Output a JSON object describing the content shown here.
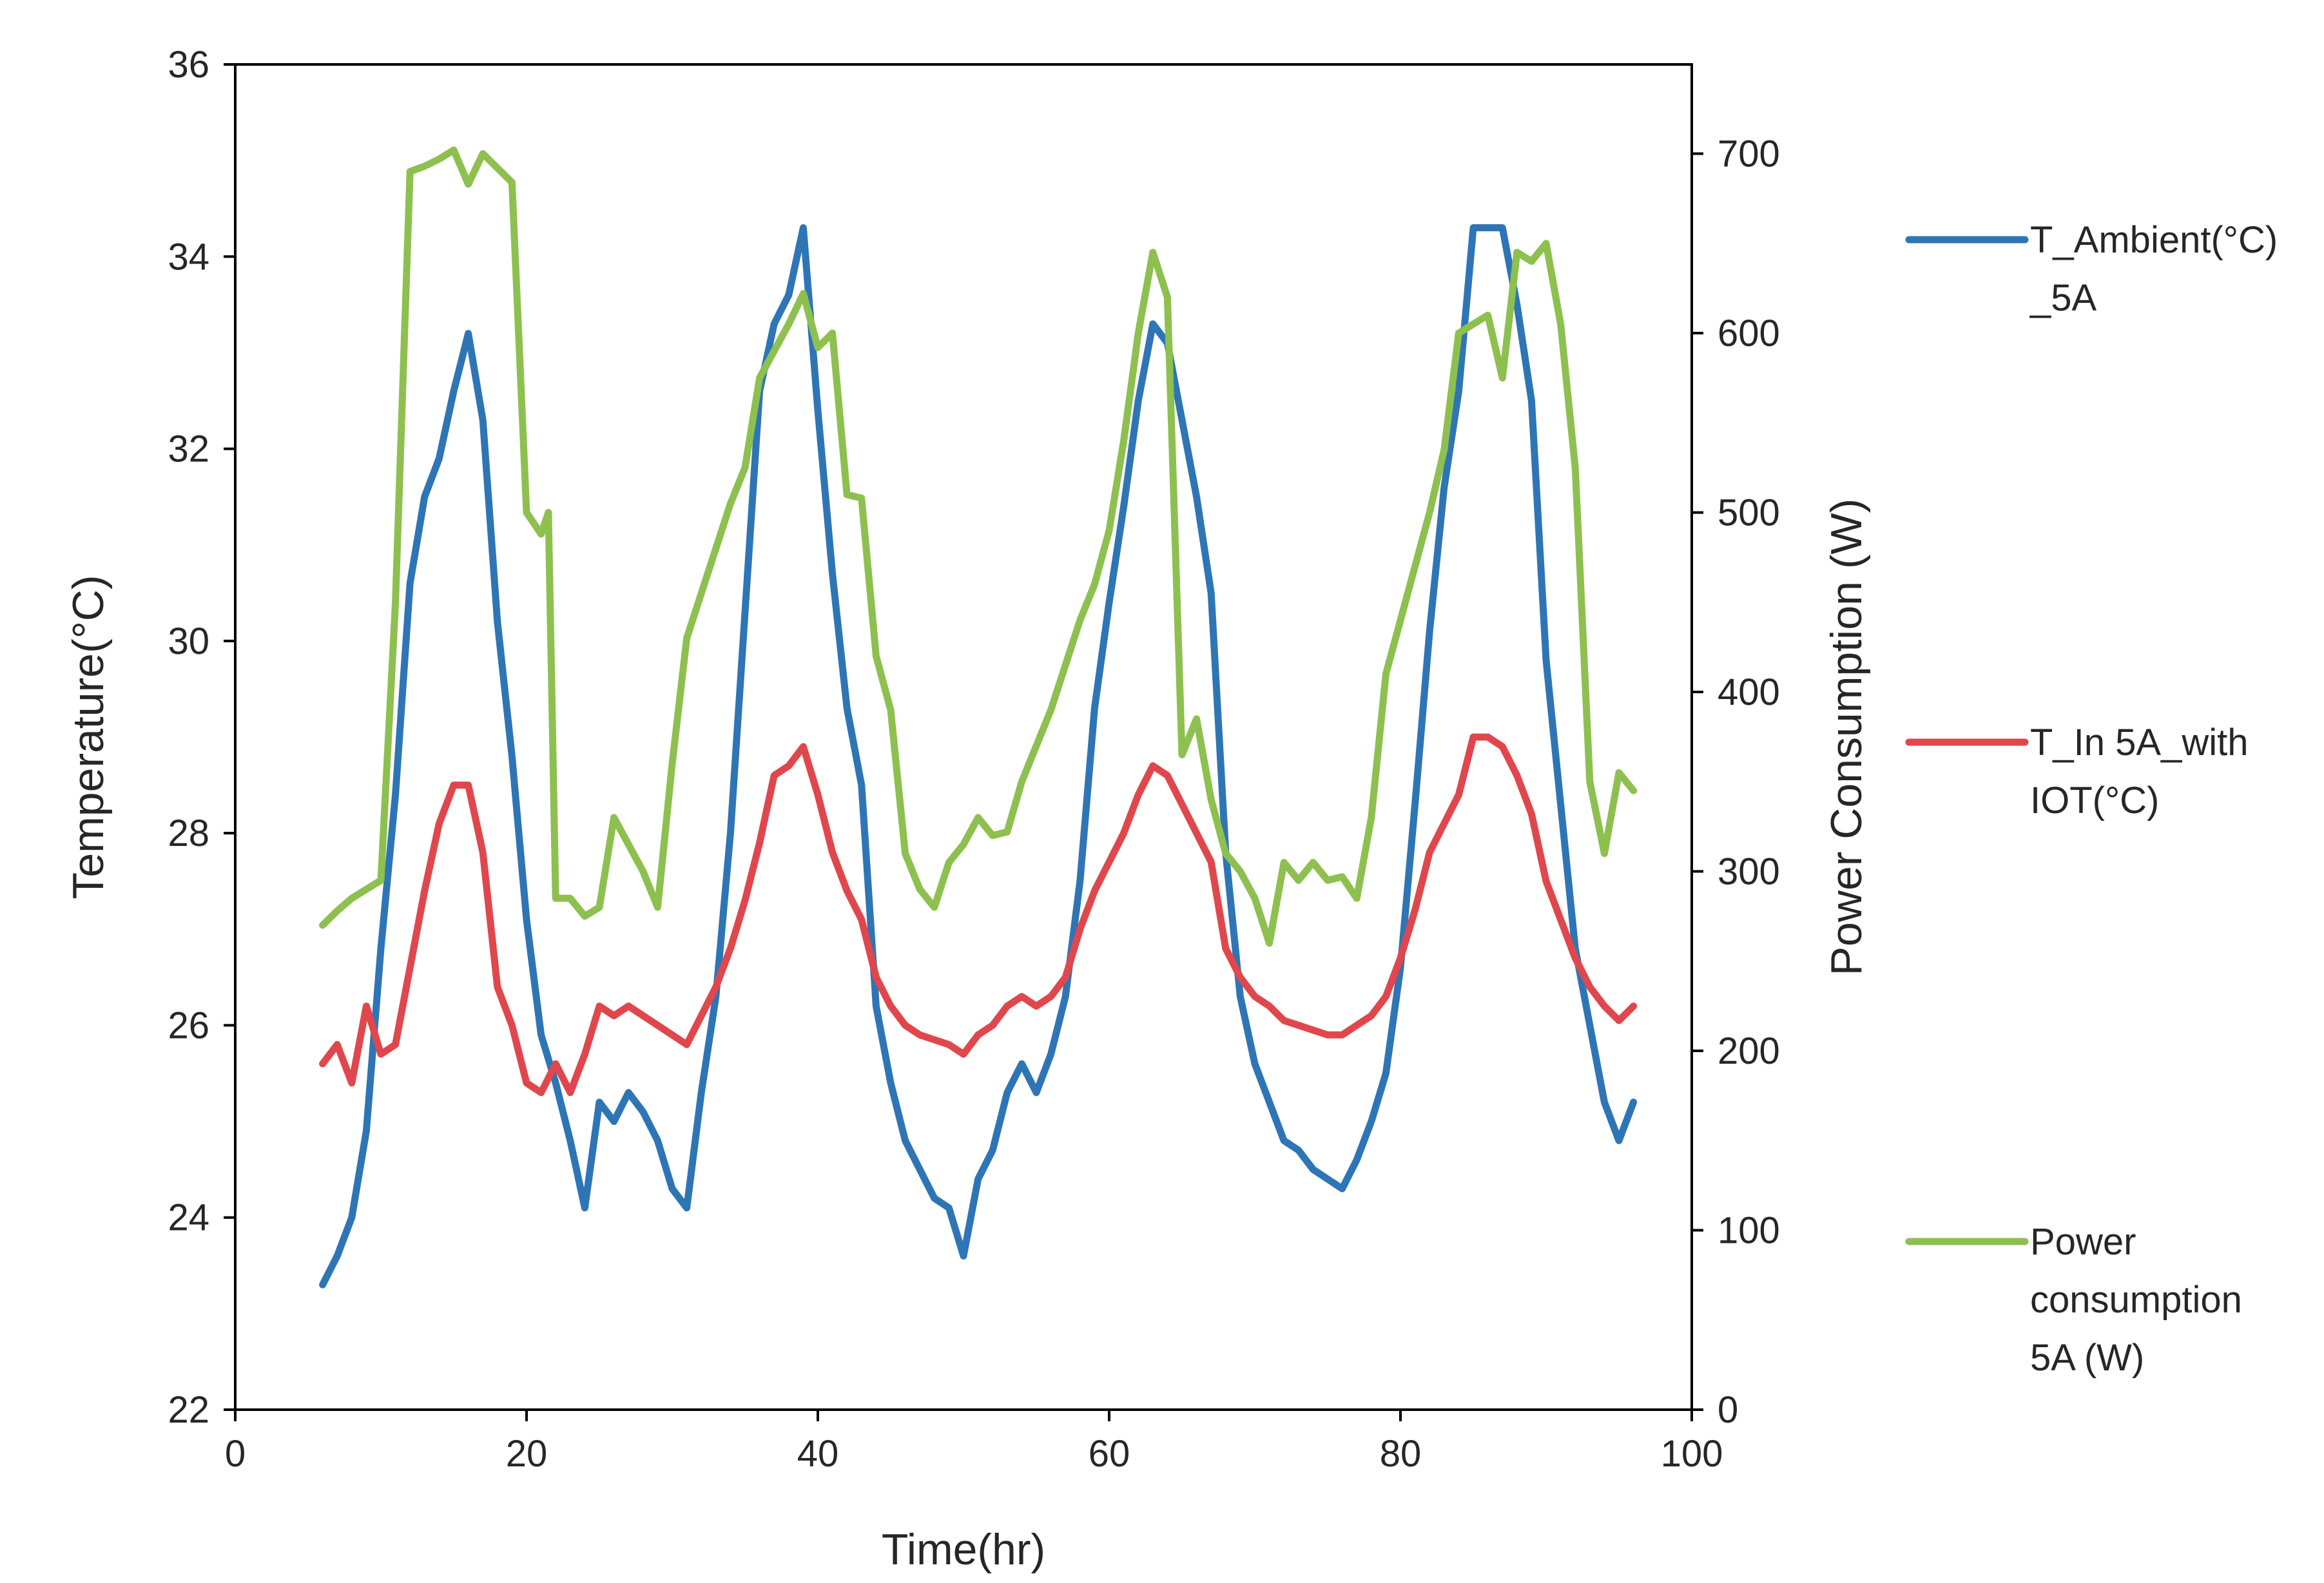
{
  "chart_data": {
    "type": "line",
    "title": "",
    "xlabel": "Time(hr)",
    "ylabel": "Temperature(°C)",
    "y2label": "Power Consumption (W)",
    "xlim": [
      0,
      100
    ],
    "ylim": [
      22,
      36
    ],
    "y2lim": [
      0,
      750
    ],
    "x_ticks": [
      0,
      20,
      40,
      60,
      80,
      100
    ],
    "y_ticks": [
      22,
      24,
      26,
      28,
      30,
      32,
      34,
      36
    ],
    "y2_ticks": [
      0,
      100,
      200,
      300,
      400,
      500,
      600,
      700
    ],
    "grid": false,
    "legend_position": "right",
    "series": [
      {
        "name": "T_Ambient(°C)_5A",
        "legend_lines": [
          "T_Ambient(°C)",
          "_5A"
        ],
        "color": "#2E75B6",
        "axis": "left",
        "points": [
          [
            6,
            23.3
          ],
          [
            7,
            23.6
          ],
          [
            8,
            24.0
          ],
          [
            9,
            24.9
          ],
          [
            10,
            26.8
          ],
          [
            11,
            28.4
          ],
          [
            12,
            30.6
          ],
          [
            13,
            31.5
          ],
          [
            14,
            31.9
          ],
          [
            15,
            32.6
          ],
          [
            16,
            33.2
          ],
          [
            17,
            32.3
          ],
          [
            18,
            30.2
          ],
          [
            19,
            28.8
          ],
          [
            20,
            27.1
          ],
          [
            21,
            25.9
          ],
          [
            22,
            25.4
          ],
          [
            23,
            24.8
          ],
          [
            24,
            24.1
          ],
          [
            25,
            25.2
          ],
          [
            26,
            25.0
          ],
          [
            27,
            25.3
          ],
          [
            28,
            25.1
          ],
          [
            29,
            24.8
          ],
          [
            30,
            24.3
          ],
          [
            31,
            24.1
          ],
          [
            32,
            25.3
          ],
          [
            33,
            26.3
          ],
          [
            34,
            28.0
          ],
          [
            35,
            30.3
          ],
          [
            36,
            32.6
          ],
          [
            37,
            33.3
          ],
          [
            38,
            33.6
          ],
          [
            39,
            34.3
          ],
          [
            40,
            32.4
          ],
          [
            41,
            30.7
          ],
          [
            42,
            29.3
          ],
          [
            43,
            28.5
          ],
          [
            44,
            26.2
          ],
          [
            45,
            25.4
          ],
          [
            46,
            24.8
          ],
          [
            47,
            24.5
          ],
          [
            48,
            24.2
          ],
          [
            49,
            24.1
          ],
          [
            50,
            23.6
          ],
          [
            51,
            24.4
          ],
          [
            52,
            24.7
          ],
          [
            53,
            25.3
          ],
          [
            54,
            25.6
          ],
          [
            55,
            25.3
          ],
          [
            56,
            25.7
          ],
          [
            57,
            26.3
          ],
          [
            58,
            27.5
          ],
          [
            59,
            29.3
          ],
          [
            60,
            30.4
          ],
          [
            61,
            31.4
          ],
          [
            62,
            32.5
          ],
          [
            63,
            33.3
          ],
          [
            64,
            33.1
          ],
          [
            65,
            32.3
          ],
          [
            66,
            31.5
          ],
          [
            67,
            30.5
          ],
          [
            68,
            27.8
          ],
          [
            69,
            26.3
          ],
          [
            70,
            25.6
          ],
          [
            71,
            25.2
          ],
          [
            72,
            24.8
          ],
          [
            73,
            24.7
          ],
          [
            74,
            24.5
          ],
          [
            75,
            24.4
          ],
          [
            76,
            24.3
          ],
          [
            77,
            24.6
          ],
          [
            78,
            25.0
          ],
          [
            79,
            25.5
          ],
          [
            80,
            26.6
          ],
          [
            81,
            28.3
          ],
          [
            82,
            30.1
          ],
          [
            83,
            31.6
          ],
          [
            84,
            32.6
          ],
          [
            85,
            34.3
          ],
          [
            86,
            34.3
          ],
          [
            87,
            34.3
          ],
          [
            88,
            33.5
          ],
          [
            89,
            32.5
          ],
          [
            90,
            29.8
          ],
          [
            91,
            28.3
          ],
          [
            92,
            26.8
          ],
          [
            93,
            26.0
          ],
          [
            94,
            25.2
          ],
          [
            95,
            24.8
          ],
          [
            96,
            25.2
          ]
        ]
      },
      {
        "name": "T_In 5A_with IOT(°C)",
        "legend_lines": [
          "T_In 5A_with",
          "IOT(°C)"
        ],
        "color": "#E0474C",
        "axis": "left",
        "points": [
          [
            6,
            25.6
          ],
          [
            7,
            25.8
          ],
          [
            8,
            25.4
          ],
          [
            9,
            26.2
          ],
          [
            10,
            25.7
          ],
          [
            11,
            25.8
          ],
          [
            12,
            26.6
          ],
          [
            13,
            27.4
          ],
          [
            14,
            28.1
          ],
          [
            15,
            28.5
          ],
          [
            16,
            28.5
          ],
          [
            17,
            27.8
          ],
          [
            18,
            26.4
          ],
          [
            19,
            26.0
          ],
          [
            20,
            25.4
          ],
          [
            21,
            25.3
          ],
          [
            22,
            25.6
          ],
          [
            23,
            25.3
          ],
          [
            24,
            25.7
          ],
          [
            25,
            26.2
          ],
          [
            26,
            26.1
          ],
          [
            27,
            26.2
          ],
          [
            28,
            26.1
          ],
          [
            29,
            26.0
          ],
          [
            30,
            25.9
          ],
          [
            31,
            25.8
          ],
          [
            32,
            26.1
          ],
          [
            33,
            26.4
          ],
          [
            34,
            26.8
          ],
          [
            35,
            27.3
          ],
          [
            36,
            27.9
          ],
          [
            37,
            28.6
          ],
          [
            38,
            28.7
          ],
          [
            39,
            28.9
          ],
          [
            40,
            28.4
          ],
          [
            41,
            27.8
          ],
          [
            42,
            27.4
          ],
          [
            43,
            27.1
          ],
          [
            44,
            26.5
          ],
          [
            45,
            26.2
          ],
          [
            46,
            26.0
          ],
          [
            47,
            25.9
          ],
          [
            48,
            25.85
          ],
          [
            49,
            25.8
          ],
          [
            50,
            25.7
          ],
          [
            51,
            25.9
          ],
          [
            52,
            26.0
          ],
          [
            53,
            26.2
          ],
          [
            54,
            26.3
          ],
          [
            55,
            26.2
          ],
          [
            56,
            26.3
          ],
          [
            57,
            26.5
          ],
          [
            58,
            27.0
          ],
          [
            59,
            27.4
          ],
          [
            60,
            27.7
          ],
          [
            61,
            28.0
          ],
          [
            62,
            28.4
          ],
          [
            63,
            28.7
          ],
          [
            64,
            28.6
          ],
          [
            65,
            28.3
          ],
          [
            66,
            28.0
          ],
          [
            67,
            27.7
          ],
          [
            68,
            26.8
          ],
          [
            69,
            26.5
          ],
          [
            70,
            26.3
          ],
          [
            71,
            26.2
          ],
          [
            72,
            26.05
          ],
          [
            73,
            26.0
          ],
          [
            74,
            25.95
          ],
          [
            75,
            25.9
          ],
          [
            76,
            25.9
          ],
          [
            77,
            26.0
          ],
          [
            78,
            26.1
          ],
          [
            79,
            26.3
          ],
          [
            80,
            26.7
          ],
          [
            81,
            27.2
          ],
          [
            82,
            27.8
          ],
          [
            83,
            28.1
          ],
          [
            84,
            28.4
          ],
          [
            85,
            29.0
          ],
          [
            86,
            29.0
          ],
          [
            87,
            28.9
          ],
          [
            88,
            28.6
          ],
          [
            89,
            28.2
          ],
          [
            90,
            27.5
          ],
          [
            91,
            27.1
          ],
          [
            92,
            26.7
          ],
          [
            93,
            26.4
          ],
          [
            94,
            26.2
          ],
          [
            95,
            26.05
          ],
          [
            96,
            26.2
          ]
        ]
      },
      {
        "name": "Power consumption 5A (W)",
        "legend_lines": [
          "Power",
          "consumption",
          "5A (W)"
        ],
        "color": "#8DC04F",
        "axis": "right",
        "points": [
          [
            6,
            270
          ],
          [
            7,
            278
          ],
          [
            8,
            285
          ],
          [
            9,
            290
          ],
          [
            10,
            295
          ],
          [
            11,
            450
          ],
          [
            12,
            690
          ],
          [
            13,
            693
          ],
          [
            14,
            697
          ],
          [
            15,
            702
          ],
          [
            16,
            683
          ],
          [
            17,
            700
          ],
          [
            18,
            692
          ],
          [
            19,
            684
          ],
          [
            20,
            500
          ],
          [
            21,
            488
          ],
          [
            21.5,
            500
          ],
          [
            22,
            285
          ],
          [
            23,
            285
          ],
          [
            24,
            275
          ],
          [
            25,
            280
          ],
          [
            26,
            330
          ],
          [
            27,
            315
          ],
          [
            28,
            300
          ],
          [
            29,
            280
          ],
          [
            30,
            360
          ],
          [
            31,
            430
          ],
          [
            32,
            455
          ],
          [
            33,
            480
          ],
          [
            34,
            505
          ],
          [
            35,
            525
          ],
          [
            36,
            575
          ],
          [
            37,
            590
          ],
          [
            38,
            605
          ],
          [
            39,
            622
          ],
          [
            40,
            592
          ],
          [
            41,
            600
          ],
          [
            42,
            510
          ],
          [
            43,
            508
          ],
          [
            44,
            420
          ],
          [
            45,
            390
          ],
          [
            46,
            310
          ],
          [
            47,
            290
          ],
          [
            48,
            280
          ],
          [
            49,
            305
          ],
          [
            50,
            315
          ],
          [
            51,
            330
          ],
          [
            52,
            320
          ],
          [
            53,
            322
          ],
          [
            54,
            350
          ],
          [
            55,
            370
          ],
          [
            56,
            390
          ],
          [
            57,
            415
          ],
          [
            58,
            440
          ],
          [
            59,
            460
          ],
          [
            60,
            490
          ],
          [
            61,
            540
          ],
          [
            62,
            600
          ],
          [
            63,
            645
          ],
          [
            64,
            620
          ],
          [
            65,
            365
          ],
          [
            66,
            385
          ],
          [
            67,
            340
          ],
          [
            68,
            310
          ],
          [
            69,
            300
          ],
          [
            70,
            285
          ],
          [
            71,
            260
          ],
          [
            72,
            305
          ],
          [
            73,
            295
          ],
          [
            74,
            305
          ],
          [
            75,
            295
          ],
          [
            76,
            297
          ],
          [
            77,
            285
          ],
          [
            78,
            330
          ],
          [
            79,
            410
          ],
          [
            80,
            440
          ],
          [
            81,
            470
          ],
          [
            82,
            500
          ],
          [
            83,
            535
          ],
          [
            84,
            600
          ],
          [
            85,
            605
          ],
          [
            86,
            610
          ],
          [
            87,
            575
          ],
          [
            88,
            645
          ],
          [
            89,
            640
          ],
          [
            90,
            650
          ],
          [
            91,
            605
          ],
          [
            92,
            525
          ],
          [
            93,
            350
          ],
          [
            94,
            310
          ],
          [
            95,
            355
          ],
          [
            96,
            345
          ]
        ]
      }
    ]
  }
}
